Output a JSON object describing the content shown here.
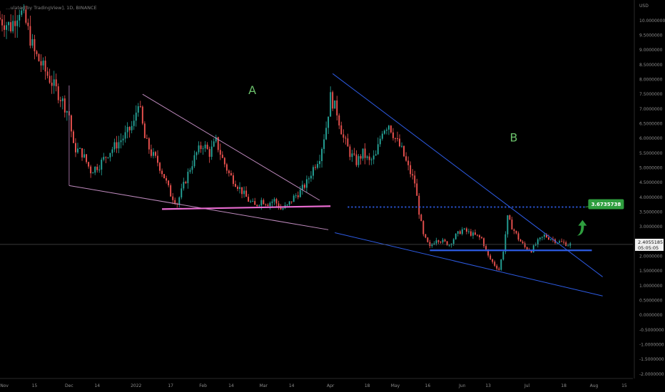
{
  "chart_data": {
    "type": "candlestick",
    "title": "…ulated by TradingView], 1D, BINANCE",
    "currency": "USD",
    "colors": {
      "background": "#000000",
      "up": "#26a69a",
      "down": "#ef5350",
      "pattern_a": "#c08bbf",
      "pattern_b": "#2d5be3",
      "support_a": "#e86bd0",
      "label": "#6abf6a",
      "badge": "#2e9e3e"
    },
    "y_axis": {
      "ticks": [
        "10.0000000",
        "9.5000000",
        "9.0000000",
        "8.5000000",
        "8.0000000",
        "7.5000000",
        "7.0000000",
        "6.5000000",
        "6.0000000",
        "5.5000000",
        "5.0000000",
        "4.5000000",
        "4.0000000",
        "3.5000000",
        "3.0000000",
        "2.5000000",
        "2.0000000",
        "1.5000000",
        "1.0000000",
        "0.5000000",
        "0.0000000",
        "-0.5000000",
        "-1.0000000",
        "-1.5000000",
        "-2.0000000"
      ],
      "range": [
        -2.15,
        10.7
      ]
    },
    "x_axis": {
      "ticks": [
        {
          "label": "Nov",
          "date": "2021-11-01"
        },
        {
          "label": "15",
          "date": "2021-11-15"
        },
        {
          "label": "Dec",
          "date": "2021-12-01"
        },
        {
          "label": "14",
          "date": "2021-12-14"
        },
        {
          "label": "2022",
          "date": "2022-01-01"
        },
        {
          "label": "17",
          "date": "2022-01-17"
        },
        {
          "label": "Feb",
          "date": "2022-02-01"
        },
        {
          "label": "14",
          "date": "2022-02-14"
        },
        {
          "label": "Mar",
          "date": "2022-03-01"
        },
        {
          "label": "14",
          "date": "2022-03-14"
        },
        {
          "label": "Apr",
          "date": "2022-04-01"
        },
        {
          "label": "18",
          "date": "2022-04-18"
        },
        {
          "label": "May",
          "date": "2022-05-01"
        },
        {
          "label": "16",
          "date": "2022-05-16"
        },
        {
          "label": "Jun",
          "date": "2022-06-01"
        },
        {
          "label": "13",
          "date": "2022-06-13"
        },
        {
          "label": "Jul",
          "date": "2022-07-01"
        },
        {
          "label": "18",
          "date": "2022-07-18"
        },
        {
          "label": "Aug",
          "date": "2022-08-01"
        },
        {
          "label": "15",
          "date": "2022-08-15"
        }
      ],
      "range": [
        "2021-10-30",
        "2022-08-19"
      ]
    },
    "price_path": [
      [
        "2021-10-30",
        10.1
      ],
      [
        "2021-11-05",
        9.8
      ],
      [
        "2021-11-09",
        10.4
      ],
      [
        "2021-11-12",
        9.9
      ],
      [
        "2021-11-16",
        8.9
      ],
      [
        "2021-11-20",
        8.4
      ],
      [
        "2021-11-24",
        7.9
      ],
      [
        "2021-11-28",
        7.4
      ],
      [
        "2021-12-02",
        6.8
      ],
      [
        "2021-12-04",
        5.7
      ],
      [
        "2021-12-08",
        5.5
      ],
      [
        "2021-12-12",
        4.9
      ],
      [
        "2021-12-16",
        5.1
      ],
      [
        "2021-12-20",
        5.5
      ],
      [
        "2021-12-24",
        5.8
      ],
      [
        "2021-12-28",
        6.1
      ],
      [
        "2022-01-01",
        6.5
      ],
      [
        "2022-01-03",
        7.3
      ],
      [
        "2022-01-06",
        6.0
      ],
      [
        "2022-01-09",
        5.5
      ],
      [
        "2022-01-12",
        5.2
      ],
      [
        "2022-01-15",
        4.7
      ],
      [
        "2022-01-18",
        4.1
      ],
      [
        "2022-01-21",
        3.8
      ],
      [
        "2022-01-24",
        4.4
      ],
      [
        "2022-01-27",
        5.0
      ],
      [
        "2022-01-30",
        5.5
      ],
      [
        "2022-02-02",
        5.8
      ],
      [
        "2022-02-05",
        5.5
      ],
      [
        "2022-02-08",
        5.9
      ],
      [
        "2022-02-11",
        5.3
      ],
      [
        "2022-02-14",
        4.8
      ],
      [
        "2022-02-17",
        4.5
      ],
      [
        "2022-02-20",
        4.2
      ],
      [
        "2022-02-23",
        3.9
      ],
      [
        "2022-02-26",
        3.7
      ],
      [
        "2022-03-01",
        3.9
      ],
      [
        "2022-03-04",
        3.8
      ],
      [
        "2022-03-07",
        3.9
      ],
      [
        "2022-03-10",
        3.6
      ],
      [
        "2022-03-13",
        3.7
      ],
      [
        "2022-03-16",
        4.0
      ],
      [
        "2022-03-19",
        4.2
      ],
      [
        "2022-03-22",
        4.5
      ],
      [
        "2022-03-25",
        5.0
      ],
      [
        "2022-03-28",
        5.4
      ],
      [
        "2022-03-31",
        6.4
      ],
      [
        "2022-04-02",
        7.4
      ],
      [
        "2022-04-05",
        6.9
      ],
      [
        "2022-04-08",
        6.0
      ],
      [
        "2022-04-11",
        5.5
      ],
      [
        "2022-04-14",
        5.2
      ],
      [
        "2022-04-17",
        5.5
      ],
      [
        "2022-04-20",
        5.2
      ],
      [
        "2022-04-23",
        5.4
      ],
      [
        "2022-04-26",
        6.3
      ],
      [
        "2022-04-29",
        6.5
      ],
      [
        "2022-05-02",
        6.0
      ],
      [
        "2022-05-05",
        5.6
      ],
      [
        "2022-05-08",
        5.0
      ],
      [
        "2022-05-11",
        4.5
      ],
      [
        "2022-05-13",
        3.5
      ],
      [
        "2022-05-15",
        2.7
      ],
      [
        "2022-05-18",
        2.3
      ],
      [
        "2022-05-21",
        2.6
      ],
      [
        "2022-05-24",
        2.5
      ],
      [
        "2022-05-27",
        2.4
      ],
      [
        "2022-05-30",
        2.7
      ],
      [
        "2022-06-02",
        2.9
      ],
      [
        "2022-06-05",
        2.8
      ],
      [
        "2022-06-08",
        2.7
      ],
      [
        "2022-06-11",
        2.6
      ],
      [
        "2022-06-14",
        2.0
      ],
      [
        "2022-06-17",
        1.7
      ],
      [
        "2022-06-19",
        1.55
      ],
      [
        "2022-06-21",
        2.2
      ],
      [
        "2022-06-23",
        3.3
      ],
      [
        "2022-06-25",
        3.0
      ],
      [
        "2022-06-28",
        2.6
      ],
      [
        "2022-07-01",
        2.3
      ],
      [
        "2022-07-04",
        2.2
      ],
      [
        "2022-07-07",
        2.5
      ],
      [
        "2022-07-10",
        2.7
      ],
      [
        "2022-07-13",
        2.6
      ],
      [
        "2022-07-16",
        2.5
      ],
      [
        "2022-07-19",
        2.45
      ],
      [
        "2022-07-21",
        2.4
      ]
    ],
    "pattern_a": {
      "label": "A",
      "upper_line": [
        [
          "2022-01-04",
          7.5
        ],
        [
          "2022-03-27",
          3.9
        ]
      ],
      "lower_line": [
        [
          "2021-12-01",
          4.4
        ],
        [
          "2022-03-31",
          2.9
        ]
      ],
      "support_line": [
        [
          "2022-01-13",
          3.6
        ],
        [
          "2022-04-01",
          3.7
        ]
      ],
      "left_edge": [
        [
          "2021-12-01",
          7.8
        ],
        [
          "2021-12-01",
          4.4
        ]
      ]
    },
    "pattern_b": {
      "label": "B",
      "upper_line": [
        [
          "2022-04-02",
          8.2
        ],
        [
          "2022-08-05",
          1.3
        ]
      ],
      "lower_line": [
        [
          "2022-04-03",
          2.8
        ],
        [
          "2022-08-05",
          0.65
        ]
      ],
      "support_line": [
        [
          "2022-05-17",
          2.2
        ],
        [
          "2022-07-31",
          2.2
        ]
      ]
    },
    "target": {
      "value": "3.6735738",
      "level": 3.67,
      "from": "2022-04-09",
      "to": "2022-07-28"
    },
    "current_price": {
      "value": "2.4055185",
      "countdown": "05:05:05",
      "level": 2.4
    },
    "breakout_arrow": {
      "date": "2022-07-28",
      "level": 2.7
    }
  }
}
